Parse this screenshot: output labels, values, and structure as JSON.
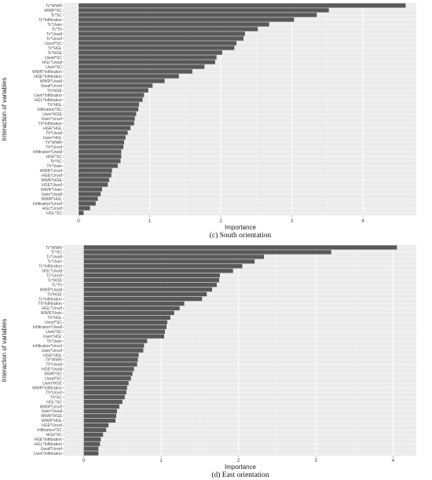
{
  "chart_data": [
    {
      "type": "bar",
      "orientation": "horizontal",
      "xlabel": "Importance",
      "ylabel": "Interaction of variables",
      "caption": "(c) South orientation",
      "xlim": [
        -0.2,
        4.75
      ],
      "xticks": [
        "0",
        "1",
        "2",
        "3",
        "4"
      ],
      "categories": [
        "Tc*WWR",
        "WWR*SC",
        "Tc*SC",
        "Tc*Infiltration",
        "Tc*Uwin",
        "Tc*Th",
        "Tc*Uwall",
        "Tc*Uroof",
        "Uroof*SC",
        "Tc*HGL",
        "Tc*HGE",
        "Uwall*SC",
        "HGL*Uwall",
        "Uwin*SC",
        "WWR*Infiltration",
        "HGE*Infiltration",
        "WWR*Uwall",
        "Uwall*Uroof",
        "Th*HGE",
        "Uwin*Infiltration",
        "HGL*Infiltration",
        "Th*HGL",
        "Infiltration*SC",
        "Uwin*HGE",
        "Uwin*Uroof",
        "Th*Infiltration",
        "HGE*HGL",
        "Th*Uwall",
        "Uwin*HGL",
        "Th*WWR",
        "Th*Uroof",
        "Infiltration*Uwall",
        "HGE*SC",
        "Th*SC",
        "Th*Uwin",
        "WWR*Uroof",
        "HGE*Uroof",
        "WWR*HGE",
        "HGE*Uwall",
        "WWR*Uwin",
        "Uwin*Uwall",
        "WWR*HGL",
        "Infiltration*Uroof",
        "HGL*Uroof",
        "HGL*SC"
      ],
      "values": [
        4.6,
        3.52,
        3.35,
        3.03,
        2.68,
        2.52,
        2.34,
        2.32,
        2.22,
        2.19,
        2.02,
        1.94,
        1.92,
        1.77,
        1.6,
        1.41,
        1.21,
        1.04,
        0.98,
        0.92,
        0.9,
        0.85,
        0.84,
        0.81,
        0.79,
        0.78,
        0.73,
        0.69,
        0.66,
        0.64,
        0.63,
        0.6,
        0.6,
        0.59,
        0.55,
        0.47,
        0.46,
        0.43,
        0.41,
        0.33,
        0.31,
        0.27,
        0.24,
        0.16,
        0.07
      ],
      "bar_color": "#595959",
      "panel_color": "#ebebeb",
      "grid": true
    },
    {
      "type": "bar",
      "orientation": "horizontal",
      "xlabel": "Importance",
      "ylabel": "Interaction of variables",
      "caption": "(d) East orientation",
      "xlim": [
        -0.25,
        4.3
      ],
      "xticks": [
        "0",
        "1",
        "2",
        "3",
        "4"
      ],
      "categories": [
        "Tc*WWR",
        "Tc*SC",
        "Tc*Uwall",
        "Tc*Uwin",
        "Tc*Infiltration",
        "HGL*Uwall",
        "Tc*Uroof",
        "Tc*HGE",
        "Tc*Th",
        "WWR*Uwall",
        "Th*HGE",
        "Tc*Infiltration",
        "Th*Infiltration",
        "HGL*Uroof",
        "WWR*Uwin",
        "Th*HGL",
        "Uroof*SC",
        "Infiltration*Uwall",
        "Uwin*SC",
        "Uwin*HGL",
        "Th*Uwin",
        "Infiltration*Uroof",
        "Uwin*Uroof",
        "HGE*HGL",
        "Th*WWR",
        "Th*Uwall",
        "HGE*Uwall",
        "WWR*SC",
        "Uwall*SC",
        "Uwin*HGE",
        "WWR*Infiltration",
        "Th*Uroof",
        "Th*SC",
        "HGL*SC",
        "WWR*Uroof",
        "Uwin*Uwall",
        "WWR*HGE",
        "WWR*HGL",
        "HGE*Uroof",
        "Infiltration*SC",
        "HGE*SC",
        "HGE*Infiltration",
        "HGL*Infiltration",
        "Uwall*Uroof",
        "Uwin*Infiltration"
      ],
      "values": [
        4.05,
        3.2,
        2.33,
        2.21,
        2.05,
        1.93,
        1.76,
        1.75,
        1.72,
        1.66,
        1.59,
        1.53,
        1.3,
        1.24,
        1.17,
        1.12,
        1.08,
        1.07,
        1.05,
        1.04,
        0.82,
        0.78,
        0.77,
        0.71,
        0.7,
        0.69,
        0.65,
        0.63,
        0.61,
        0.58,
        0.56,
        0.55,
        0.53,
        0.5,
        0.46,
        0.43,
        0.42,
        0.41,
        0.32,
        0.29,
        0.25,
        0.22,
        0.21,
        0.19,
        0.19
      ],
      "bar_color": "#595959",
      "panel_color": "#ebebeb",
      "grid": true
    }
  ]
}
